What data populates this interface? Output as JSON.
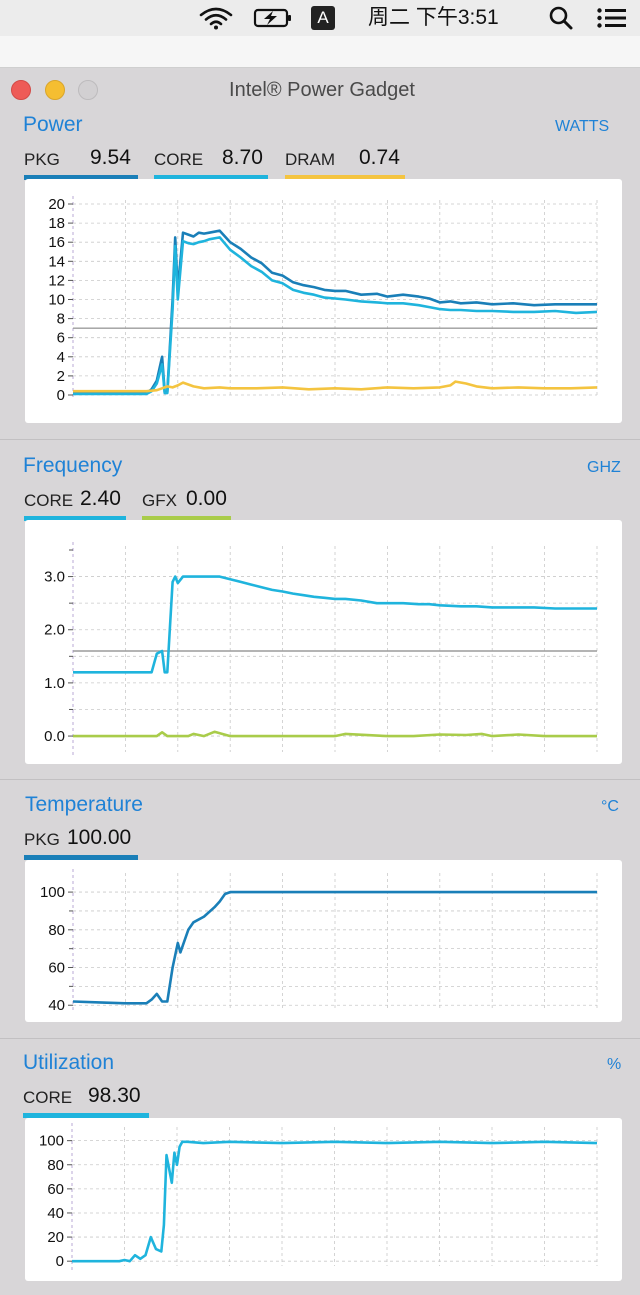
{
  "menubar": {
    "input_badge": "A",
    "clock": "周二 下午3:51",
    "icons": [
      "wifi-icon",
      "battery-charging-icon",
      "input-source-icon",
      "spotlight-search-icon",
      "control-center-list-icon"
    ]
  },
  "window": {
    "title": "Intel® Power Gadget"
  },
  "colors": {
    "pkg": "#1a7fb8",
    "core": "#1fb4dd",
    "dram": "#f4c440",
    "gfx": "#a9cc4a",
    "accent": "#1f82d6",
    "grid": "#c9c9c9",
    "limit": "#9c9c9c"
  },
  "power": {
    "title": "Power",
    "unit": "WATTS",
    "metrics": [
      {
        "label": "PKG",
        "value": "9.54"
      },
      {
        "label": "CORE",
        "value": "8.70"
      },
      {
        "label": "DRAM",
        "value": "0.74"
      }
    ]
  },
  "frequency": {
    "title": "Frequency",
    "unit": "GHZ",
    "metrics": [
      {
        "label": "CORE",
        "value": "2.40"
      },
      {
        "label": "GFX",
        "value": "0.00"
      }
    ]
  },
  "temperature": {
    "title": "Temperature",
    "unit": "°C",
    "metrics": [
      {
        "label": "PKG",
        "value": "100.00"
      }
    ]
  },
  "utilization": {
    "title": "Utilization",
    "unit": "%",
    "metrics": [
      {
        "label": "CORE",
        "value": "98.30"
      }
    ]
  },
  "chart_data": [
    {
      "type": "line",
      "ylim": [
        0,
        20
      ],
      "yticks": [
        "0",
        "2",
        "4",
        "6",
        "8",
        "10",
        "12",
        "14",
        "16",
        "18",
        "20"
      ],
      "xlim": [
        0,
        100
      ],
      "reference_line": 7,
      "grid": true,
      "series": [
        {
          "name": "PKG",
          "color": "#1a7fb8",
          "x": [
            0,
            14,
            15,
            16,
            17,
            17.5,
            18,
            19,
            19.5,
            20,
            21,
            22,
            23,
            24,
            25,
            26,
            28,
            30,
            32,
            34,
            36,
            38,
            40,
            42,
            44,
            46,
            48,
            50,
            52,
            55,
            58,
            60,
            63,
            66,
            68,
            70,
            72,
            74,
            77,
            80,
            84,
            88,
            92,
            96,
            100
          ],
          "y": [
            0.2,
            0.2,
            0.6,
            1.5,
            4,
            0.3,
            0.3,
            10,
            16.5,
            11,
            17,
            16.8,
            16.6,
            17.0,
            16.9,
            17.0,
            17.2,
            16.0,
            15.3,
            14.4,
            13.8,
            12.8,
            12.5,
            11.8,
            11.5,
            11.3,
            11.0,
            10.9,
            10.9,
            10.5,
            10.6,
            10.3,
            10.5,
            10.3,
            10.1,
            9.7,
            9.8,
            9.6,
            9.7,
            9.5,
            9.6,
            9.4,
            9.5,
            9.5,
            9.5
          ]
        },
        {
          "name": "CORE",
          "color": "#1fb4dd",
          "x": [
            0,
            14,
            15,
            16,
            17,
            17.5,
            18,
            19,
            19.5,
            20,
            21,
            22,
            23,
            24,
            25,
            26,
            28,
            30,
            32,
            34,
            36,
            38,
            40,
            42,
            44,
            46,
            48,
            50,
            52,
            55,
            58,
            60,
            63,
            66,
            68,
            70,
            72,
            74,
            77,
            80,
            84,
            88,
            92,
            96,
            100
          ],
          "y": [
            0.1,
            0.1,
            0.4,
            1.2,
            3.2,
            0.2,
            0.2,
            9,
            15.6,
            10,
            16.1,
            15.9,
            15.8,
            16.0,
            16.1,
            16.3,
            16.5,
            15.2,
            14.4,
            13.5,
            12.9,
            12.0,
            11.7,
            11.0,
            10.7,
            10.5,
            10.2,
            10.1,
            10.0,
            9.8,
            9.7,
            9.6,
            9.6,
            9.4,
            9.2,
            9.0,
            8.9,
            8.9,
            8.8,
            8.8,
            8.7,
            8.7,
            8.8,
            8.6,
            8.7
          ]
        },
        {
          "name": "DRAM",
          "color": "#f4c440",
          "x": [
            0,
            14,
            16,
            17,
            18,
            19,
            20,
            21,
            22,
            23,
            25,
            28,
            30,
            35,
            40,
            45,
            50,
            55,
            60,
            65,
            70,
            72,
            73,
            75,
            77,
            80,
            85,
            90,
            95,
            100
          ],
          "y": [
            0.4,
            0.4,
            0.5,
            0.7,
            0.9,
            0.8,
            1.0,
            1.3,
            1.1,
            0.9,
            0.7,
            0.8,
            0.7,
            0.7,
            0.8,
            0.6,
            0.7,
            0.6,
            0.8,
            0.7,
            0.8,
            1.0,
            1.4,
            1.2,
            0.9,
            0.7,
            0.8,
            0.7,
            0.7,
            0.8
          ]
        }
      ]
    },
    {
      "type": "line",
      "ylim": [
        -0.3,
        3.5
      ],
      "yticks": [
        "0.0",
        "1.0",
        "2.0",
        "3.0"
      ],
      "xlim": [
        0,
        100
      ],
      "reference_line": 1.6,
      "grid": true,
      "series": [
        {
          "name": "CORE",
          "color": "#1fb4dd",
          "x": [
            0,
            15,
            16,
            17,
            17.5,
            18,
            19,
            19.5,
            20,
            21,
            22,
            24,
            28,
            30,
            32,
            34,
            36,
            38,
            40,
            42,
            44,
            46,
            48,
            50,
            52,
            55,
            58,
            60,
            63,
            66,
            68,
            70,
            72,
            74,
            77,
            80,
            84,
            88,
            92,
            96,
            100
          ],
          "y": [
            1.2,
            1.2,
            1.55,
            1.6,
            1.2,
            1.2,
            2.9,
            3.0,
            2.88,
            3.0,
            3.0,
            3.0,
            3.0,
            2.95,
            2.9,
            2.85,
            2.8,
            2.75,
            2.72,
            2.68,
            2.65,
            2.62,
            2.6,
            2.58,
            2.58,
            2.55,
            2.5,
            2.5,
            2.5,
            2.48,
            2.48,
            2.46,
            2.45,
            2.44,
            2.44,
            2.42,
            2.42,
            2.42,
            2.4,
            2.4,
            2.4
          ]
        },
        {
          "name": "GFX",
          "color": "#a9cc4a",
          "x": [
            0,
            15,
            16,
            17,
            18,
            20,
            22,
            23,
            25,
            27,
            30,
            40,
            50,
            52,
            60,
            65,
            70,
            75,
            78,
            80,
            85,
            90,
            100
          ],
          "y": [
            0.0,
            0.0,
            0.0,
            0.07,
            0.0,
            0.0,
            0.0,
            0.04,
            0.0,
            0.08,
            0.0,
            0.0,
            0.0,
            0.04,
            0.0,
            0.0,
            0.03,
            0.02,
            0.04,
            0.0,
            0.03,
            0.0,
            0.0
          ]
        }
      ]
    },
    {
      "type": "line",
      "ylim": [
        38,
        108
      ],
      "yticks": [
        "40",
        "60",
        "80",
        "100"
      ],
      "xlim": [
        0,
        100
      ],
      "grid": true,
      "series": [
        {
          "name": "PKG",
          "color": "#1a7fb8",
          "x": [
            0,
            5,
            10,
            14,
            15,
            16,
            17,
            18,
            19,
            20,
            20.5,
            21,
            22,
            23,
            25,
            27,
            28,
            29,
            30,
            32,
            35,
            40,
            45,
            50,
            60,
            70,
            80,
            90,
            100
          ],
          "y": [
            42,
            41.5,
            41,
            41,
            43,
            46,
            42,
            42,
            60,
            73,
            68,
            72,
            80,
            84,
            87,
            92,
            95,
            99,
            100,
            100,
            100,
            100,
            100,
            100,
            100,
            100,
            100,
            100,
            100
          ]
        }
      ]
    },
    {
      "type": "line",
      "ylim": [
        -4,
        108
      ],
      "yticks": [
        "0",
        "20",
        "40",
        "60",
        "80",
        "100"
      ],
      "xlim": [
        0,
        100
      ],
      "grid": true,
      "series": [
        {
          "name": "CORE",
          "color": "#1fb4dd",
          "x": [
            0,
            5,
            9,
            10,
            11,
            12,
            13,
            14,
            15,
            16,
            17,
            17.5,
            18,
            19,
            19.5,
            20,
            20.5,
            21,
            22,
            25,
            30,
            40,
            50,
            60,
            70,
            80,
            90,
            100
          ],
          "y": [
            0,
            0,
            0,
            1,
            0,
            5,
            2,
            5,
            20,
            10,
            8,
            30,
            88,
            65,
            90,
            80,
            95,
            99,
            99,
            98,
            99,
            98,
            99,
            98,
            99,
            98,
            99,
            98
          ]
        }
      ]
    }
  ]
}
